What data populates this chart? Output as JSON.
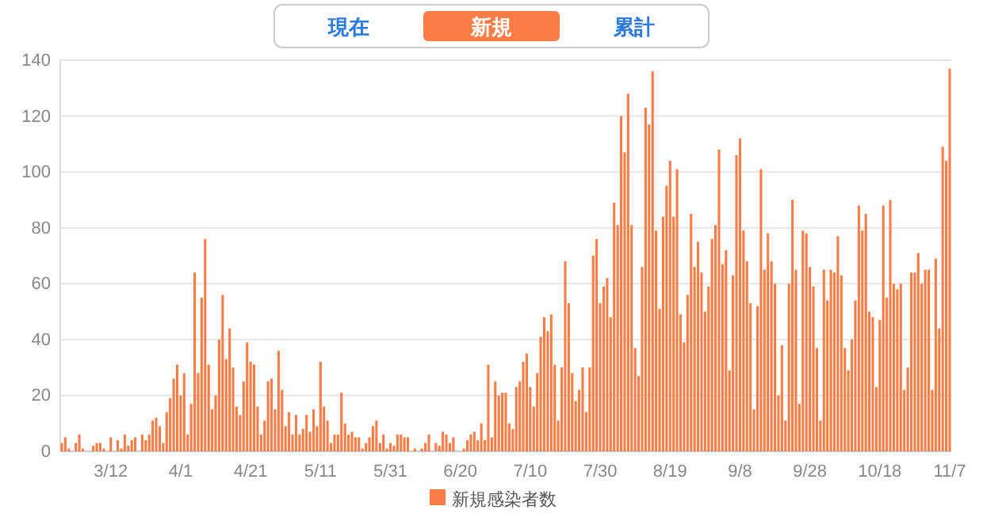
{
  "chart_data": {
    "type": "bar",
    "categories": [
      null,
      null,
      null,
      null,
      null,
      null,
      null,
      null,
      null,
      null,
      null,
      null,
      null,
      null,
      "3/12",
      null,
      null,
      null,
      null,
      null,
      null,
      null,
      null,
      null,
      null,
      null,
      null,
      null,
      null,
      null,
      null,
      null,
      null,
      null,
      "4/1",
      null,
      null,
      null,
      null,
      null,
      null,
      null,
      null,
      null,
      null,
      null,
      null,
      null,
      null,
      null,
      null,
      null,
      null,
      null,
      "4/21",
      null,
      null,
      null,
      null,
      null,
      null,
      null,
      null,
      null,
      null,
      null,
      null,
      null,
      null,
      null,
      null,
      null,
      null,
      null,
      "5/11",
      null,
      null,
      null,
      null,
      null,
      null,
      null,
      null,
      null,
      null,
      null,
      null,
      null,
      null,
      null,
      null,
      null,
      null,
      null,
      "5/31",
      null,
      null,
      null,
      null,
      null,
      null,
      null,
      null,
      null,
      null,
      null,
      null,
      null,
      null,
      null,
      null,
      null,
      null,
      null,
      "6/20",
      null,
      null,
      null,
      null,
      null,
      null,
      null,
      null,
      null,
      null,
      null,
      null,
      null,
      null,
      null,
      null,
      null,
      null,
      null,
      "7/10",
      null,
      null,
      null,
      null,
      null,
      null,
      null,
      null,
      null,
      null,
      null,
      null,
      null,
      null,
      null,
      null,
      null,
      null,
      null,
      "7/30",
      null,
      null,
      null,
      null,
      null,
      null,
      null,
      null,
      null,
      null,
      null,
      null,
      null,
      null,
      null,
      null,
      null,
      null,
      null,
      "8/19",
      null,
      null,
      null,
      null,
      null,
      null,
      null,
      null,
      null,
      null,
      null,
      null,
      null,
      null,
      null,
      null,
      null,
      null,
      null,
      "9/8",
      null,
      null,
      null,
      null,
      null,
      null,
      null,
      null,
      null,
      null,
      null,
      null,
      null,
      null,
      null,
      null,
      null,
      null,
      null,
      "9/28",
      null,
      null,
      null,
      null,
      null,
      null,
      null,
      null,
      null,
      null,
      null,
      null,
      null,
      null,
      null,
      null,
      null,
      null,
      null,
      "10/18",
      null,
      null,
      null,
      null,
      null,
      null,
      null,
      null,
      null,
      null,
      null,
      null,
      null,
      null,
      null,
      null,
      null,
      null,
      null,
      "11/7"
    ],
    "series": [
      {
        "name": "新規感染者数",
        "color": "#fa7d48",
        "values": [
          3,
          5,
          1,
          0,
          3,
          6,
          1,
          0,
          0,
          2,
          3,
          3,
          1,
          0,
          5,
          0,
          4,
          1,
          6,
          2,
          4,
          5,
          0,
          6,
          4,
          6,
          11,
          12,
          9,
          3,
          14,
          19,
          26,
          31,
          20,
          28,
          6,
          17,
          64,
          28,
          55,
          76,
          31,
          15,
          20,
          40,
          56,
          33,
          44,
          30,
          16,
          13,
          25,
          39,
          32,
          31,
          16,
          6,
          11,
          25,
          26,
          15,
          36,
          22,
          9,
          14,
          6,
          13,
          6,
          8,
          13,
          7,
          15,
          9,
          32,
          16,
          11,
          3,
          6,
          6,
          21,
          10,
          6,
          7,
          5,
          5,
          1,
          3,
          5,
          9,
          11,
          3,
          6,
          1,
          3,
          2,
          6,
          6,
          5,
          5,
          0,
          1,
          0,
          1,
          3,
          6,
          0,
          3,
          2,
          7,
          6,
          3,
          5,
          0,
          0,
          1,
          4,
          6,
          7,
          4,
          10,
          4,
          31,
          5,
          25,
          20,
          21,
          21,
          10,
          8,
          23,
          25,
          32,
          35,
          23,
          16,
          28,
          41,
          48,
          43,
          49,
          31,
          11,
          30,
          68,
          53,
          28,
          18,
          22,
          30,
          14,
          30,
          70,
          76,
          53,
          59,
          62,
          48,
          89,
          81,
          120,
          107,
          128,
          81,
          37,
          27,
          66,
          123,
          117,
          136,
          79,
          51,
          84,
          95,
          104,
          84,
          101,
          49,
          39,
          56,
          85,
          66,
          75,
          64,
          50,
          59,
          76,
          81,
          108,
          67,
          72,
          29,
          63,
          106,
          112,
          79,
          68,
          53,
          15,
          52,
          101,
          65,
          78,
          68,
          60,
          20,
          38,
          11,
          60,
          90,
          65,
          17,
          79,
          78,
          66,
          59,
          37,
          11,
          65,
          54,
          65,
          64,
          77,
          63,
          37,
          29,
          40,
          54,
          88,
          79,
          85,
          50,
          48,
          23,
          47,
          88,
          55,
          90,
          60,
          58,
          60,
          22,
          30,
          64,
          64,
          71,
          60,
          65,
          65,
          22,
          69,
          44,
          109,
          104,
          137
        ]
      }
    ],
    "ylim": [
      0,
      140
    ],
    "yticks": [
      0,
      20,
      40,
      60,
      80,
      100,
      120,
      140
    ],
    "grid": "y",
    "legend": "bottom",
    "annotations": [
      "現在",
      "新規",
      "累計"
    ]
  }
}
